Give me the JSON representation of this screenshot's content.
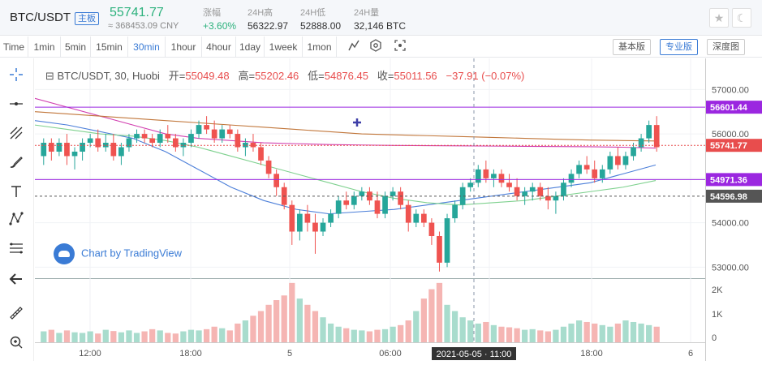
{
  "header": {
    "pair": "BTC/USDT",
    "badge": "主板",
    "price": "55741.77",
    "cny": "≈ 368453.09 CNY",
    "stats": [
      {
        "label": "涨幅",
        "value": "+3.60%"
      },
      {
        "label": "24H高",
        "value": "56322.97"
      },
      {
        "label": "24H低",
        "value": "52888.00"
      },
      {
        "label": "24H量",
        "value": "32,146 BTC"
      }
    ]
  },
  "toolbar": {
    "timeframes": [
      "Time",
      "1min",
      "5min",
      "15min",
      "30min",
      "1hour",
      "4hour",
      "1day",
      "1week",
      "1mon"
    ],
    "active": "30min",
    "views": [
      "基本版",
      "专业版",
      "深度图"
    ],
    "active_view": "专业版"
  },
  "legend": {
    "symbol": "BTC/USDT, 30, Huobi",
    "open_label": "开=",
    "open": "55049.48",
    "high_label": "高=",
    "high": "55202.46",
    "low_label": "低=",
    "low": "54876.45",
    "close_label": "收=",
    "close": "55011.56",
    "change": "−37.91 (−0.07%)"
  },
  "watermark": "Chart by TradingView",
  "chart_data": {
    "type": "candlestick",
    "y_ticks": [
      53000,
      54000,
      55000,
      56000,
      57000
    ],
    "y_tick_labels": [
      "53000.00",
      "54000.00",
      "55000.00",
      "56000.00",
      "57000.00"
    ],
    "y_range": [
      52750,
      57700
    ],
    "x_ticks": [
      "12:00",
      "18:00",
      "5",
      "06:00",
      "12:00",
      "18:00",
      "6"
    ],
    "crosshair_label": "2021-05-05 · 11:00",
    "price_lines": [
      {
        "value": 56601.44,
        "label": "56601.44",
        "color": "#9b27e0"
      },
      {
        "value": 55741.77,
        "label": "55741.77",
        "color": "#e84d4d"
      },
      {
        "value": 54971.36,
        "label": "54971.36",
        "color": "#9b27e0"
      },
      {
        "value": 54596.98,
        "label": "54596.98",
        "color": "#555555"
      }
    ],
    "volume_ticks": [
      "2K",
      "1K",
      "0"
    ],
    "candles": [
      [
        55500,
        55900,
        55300,
        55800
      ],
      [
        55800,
        55900,
        55400,
        55600
      ],
      [
        55600,
        55900,
        55500,
        55800
      ],
      [
        55800,
        56000,
        55300,
        55500
      ],
      [
        55500,
        55700,
        55200,
        55600
      ],
      [
        55600,
        55900,
        55400,
        55800
      ],
      [
        55800,
        56000,
        55700,
        55900
      ],
      [
        55900,
        56100,
        55600,
        55700
      ],
      [
        55700,
        56000,
        55600,
        55800
      ],
      [
        55800,
        56000,
        55400,
        55500
      ],
      [
        55500,
        55800,
        55300,
        55700
      ],
      [
        55700,
        56000,
        55600,
        55900
      ],
      [
        55900,
        56100,
        55800,
        56000
      ],
      [
        56000,
        56100,
        55800,
        55900
      ],
      [
        55900,
        56000,
        55700,
        55800
      ],
      [
        55800,
        56100,
        55700,
        56000
      ],
      [
        56000,
        56200,
        55800,
        55900
      ],
      [
        55900,
        56000,
        55600,
        55700
      ],
      [
        55700,
        55900,
        55500,
        55800
      ],
      [
        55800,
        56100,
        55700,
        56000
      ],
      [
        56000,
        56300,
        55900,
        56200
      ],
      [
        56200,
        56400,
        56000,
        56100
      ],
      [
        56100,
        56300,
        55800,
        55900
      ],
      [
        55900,
        56200,
        55800,
        56100
      ],
      [
        56100,
        56200,
        55900,
        56000
      ],
      [
        56000,
        56100,
        55600,
        55700
      ],
      [
        55700,
        55900,
        55500,
        55800
      ],
      [
        55800,
        56000,
        55600,
        55700
      ],
      [
        55700,
        55800,
        55300,
        55400
      ],
      [
        55400,
        55500,
        55000,
        55100
      ],
      [
        55100,
        55200,
        54600,
        54800
      ],
      [
        54800,
        54900,
        54300,
        54400
      ],
      [
        54400,
        54500,
        53500,
        53800
      ],
      [
        53800,
        54300,
        53600,
        54200
      ],
      [
        54200,
        54400,
        53800,
        54000
      ],
      [
        54000,
        54200,
        53300,
        53800
      ],
      [
        53800,
        54100,
        53700,
        54000
      ],
      [
        54000,
        54300,
        53900,
        54200
      ],
      [
        54200,
        54600,
        54100,
        54500
      ],
      [
        54500,
        54700,
        54300,
        54400
      ],
      [
        54400,
        54700,
        54300,
        54600
      ],
      [
        54600,
        54800,
        54500,
        54700
      ],
      [
        54700,
        54800,
        54400,
        54500
      ],
      [
        54500,
        54700,
        54100,
        54200
      ],
      [
        54200,
        54700,
        54100,
        54600
      ],
      [
        54600,
        54800,
        54500,
        54700
      ],
      [
        54700,
        54800,
        54300,
        54400
      ],
      [
        54400,
        54500,
        53800,
        54000
      ],
      [
        54000,
        54300,
        53900,
        54200
      ],
      [
        54200,
        54300,
        53900,
        54000
      ],
      [
        54000,
        54100,
        53500,
        53700
      ],
      [
        53700,
        53800,
        52900,
        53100
      ],
      [
        53100,
        54200,
        53000,
        54100
      ],
      [
        54100,
        54500,
        54000,
        54400
      ],
      [
        54400,
        54900,
        54300,
        54800
      ],
      [
        54800,
        55000,
        54700,
        54900
      ],
      [
        54900,
        55300,
        54800,
        55200
      ],
      [
        55200,
        55400,
        54900,
        55000
      ],
      [
        55000,
        55200,
        54800,
        55100
      ],
      [
        55100,
        55200,
        54800,
        54900
      ],
      [
        54900,
        55100,
        54700,
        54800
      ],
      [
        54800,
        55000,
        54500,
        54600
      ],
      [
        54600,
        54800,
        54400,
        54700
      ],
      [
        54700,
        54900,
        54500,
        54800
      ],
      [
        54800,
        54900,
        54500,
        54600
      ],
      [
        54600,
        54800,
        54300,
        54500
      ],
      [
        54500,
        54700,
        54200,
        54600
      ],
      [
        54600,
        55000,
        54500,
        54900
      ],
      [
        54900,
        55200,
        54800,
        55100
      ],
      [
        55100,
        55400,
        55000,
        55300
      ],
      [
        55300,
        55500,
        55100,
        55200
      ],
      [
        55200,
        55400,
        54900,
        55000
      ],
      [
        55000,
        55300,
        54900,
        55200
      ],
      [
        55200,
        55600,
        55100,
        55500
      ],
      [
        55500,
        55700,
        55200,
        55300
      ],
      [
        55300,
        55600,
        55200,
        55500
      ],
      [
        55500,
        55800,
        55400,
        55700
      ],
      [
        55700,
        56000,
        55600,
        55900
      ],
      [
        55900,
        56300,
        55800,
        56200
      ],
      [
        56200,
        56400,
        55600,
        55700
      ]
    ],
    "volumes": [
      350,
      400,
      300,
      380,
      320,
      300,
      350,
      280,
      400,
      360,
      320,
      380,
      300,
      350,
      420,
      380,
      300,
      280,
      350,
      400,
      380,
      420,
      500,
      450,
      380,
      600,
      700,
      850,
      1000,
      1200,
      1350,
      1500,
      1900,
      1400,
      1200,
      1000,
      800,
      600,
      500,
      450,
      400,
      380,
      350,
      400,
      420,
      500,
      550,
      700,
      1000,
      1400,
      1700,
      1900,
      1200,
      1000,
      800,
      700,
      600,
      650,
      550,
      500,
      480,
      450,
      400,
      420,
      380,
      350,
      400,
      500,
      600,
      700,
      650,
      600,
      550,
      500,
      600,
      700,
      650,
      600,
      550,
      500
    ],
    "moving_averages": [
      {
        "color": "#d13fb0",
        "values": [
          56800,
          56600,
          56400,
          56200,
          56000,
          55900,
          55850,
          55800,
          55780,
          55760,
          55750,
          55740,
          55735,
          55730,
          55725,
          55720,
          55715,
          55710,
          55700,
          55680
        ]
      },
      {
        "color": "#c1763a",
        "values": [
          56500,
          56450,
          56400,
          56350,
          56300,
          56250,
          56200,
          56150,
          56100,
          56050,
          56000,
          55980,
          55960,
          55940,
          55920,
          55900,
          55880,
          55860,
          55850,
          55840
        ]
      },
      {
        "color": "#4c7fd9",
        "values": [
          56300,
          56200,
          56050,
          55900,
          55600,
          55200,
          54800,
          54500,
          54300,
          54200,
          54250,
          54300,
          54400,
          54500,
          54600,
          54700,
          54800,
          54900,
          55100,
          55300
        ]
      },
      {
        "color": "#7fd18f",
        "values": [
          56200,
          56100,
          56000,
          55950,
          55850,
          55700,
          55500,
          55300,
          55100,
          54900,
          54700,
          54550,
          54450,
          54400,
          54450,
          54500,
          54600,
          54700,
          54800,
          54950
        ]
      }
    ]
  }
}
